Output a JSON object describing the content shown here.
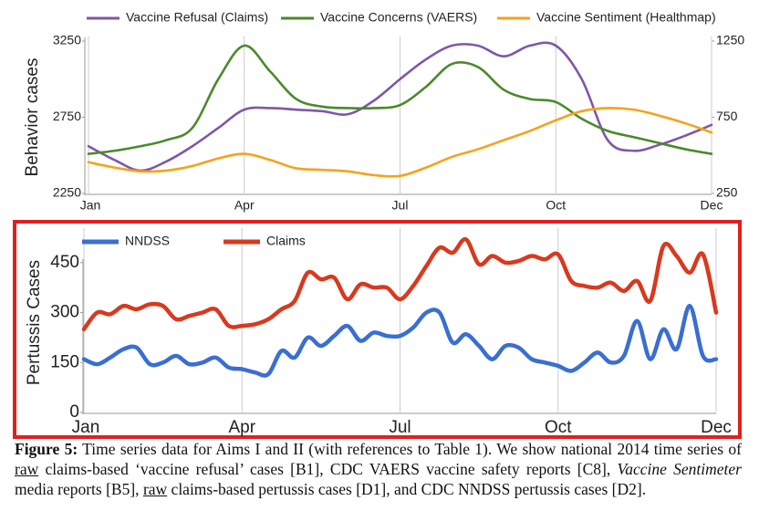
{
  "chart_data": [
    {
      "type": "line",
      "legend": "top",
      "xgrid": true,
      "ylabel": "Behavior cases",
      "categories": [
        "Jan",
        null,
        null,
        null,
        null,
        null,
        "Apr",
        null,
        null,
        null,
        null,
        null,
        "Jul",
        null,
        null,
        null,
        null,
        null,
        "Oct",
        null,
        null,
        null,
        null,
        null,
        "Dec"
      ],
      "ylim": [
        2250,
        3250
      ],
      "yticks": [
        2250,
        2750,
        3250
      ],
      "y2lim": [
        250,
        1250
      ],
      "y2ticks": [
        250,
        750,
        1250
      ],
      "series": [
        {
          "name": "Vaccine Refusal (Claims)",
          "color": "#7e57a9",
          "values": [
            2560,
            2470,
            2400,
            2460,
            2560,
            2680,
            2800,
            2810,
            2800,
            2790,
            2770,
            2860,
            3000,
            3130,
            3220,
            3220,
            3150,
            3220,
            3220,
            3000,
            2600,
            2530,
            2570,
            2630,
            2700
          ]
        },
        {
          "name": "Vaccine Concerns (VAERS)",
          "color": "#4a8a2a",
          "values": [
            2510,
            2530,
            2560,
            2600,
            2680,
            3000,
            3220,
            3050,
            2870,
            2820,
            2810,
            2810,
            2830,
            2950,
            3100,
            3080,
            2930,
            2870,
            2850,
            2740,
            2660,
            2620,
            2580,
            2540,
            2510
          ]
        },
        {
          "name": "Vaccine Sentiment (Healthmap)",
          "color": "#f6a21c",
          "axis": "y2",
          "values": [
            455,
            420,
            395,
            400,
            430,
            480,
            510,
            470,
            415,
            405,
            395,
            370,
            365,
            420,
            490,
            540,
            600,
            660,
            730,
            790,
            810,
            800,
            760,
            710,
            650
          ]
        }
      ]
    },
    {
      "type": "line",
      "legend": "top",
      "xgrid": true,
      "ylabel": "Pertussis Cases",
      "categories": [
        "Jan",
        null,
        null,
        null,
        null,
        null,
        null,
        null,
        null,
        null,
        null,
        null,
        "Apr",
        null,
        null,
        null,
        null,
        null,
        null,
        null,
        null,
        null,
        null,
        null,
        "Jul",
        null,
        null,
        null,
        null,
        null,
        null,
        null,
        null,
        null,
        null,
        null,
        "Oct",
        null,
        null,
        null,
        null,
        null,
        null,
        null,
        null,
        null,
        null,
        null,
        "Dec"
      ],
      "ylim": [
        0,
        540
      ],
      "yticks": [
        0,
        150,
        300,
        450
      ],
      "series": [
        {
          "name": "NNDSS",
          "color": "#3a6fd1",
          "values": [
            160,
            145,
            165,
            190,
            195,
            145,
            150,
            170,
            145,
            150,
            165,
            135,
            130,
            120,
            115,
            185,
            165,
            225,
            200,
            230,
            260,
            215,
            240,
            230,
            230,
            255,
            300,
            300,
            210,
            235,
            200,
            160,
            200,
            195,
            160,
            150,
            140,
            125,
            150,
            180,
            150,
            170,
            275,
            160,
            250,
            190,
            320,
            170,
            160
          ]
        },
        {
          "name": "Claims",
          "color": "#d8391f",
          "values": [
            250,
            300,
            295,
            320,
            310,
            325,
            320,
            280,
            290,
            300,
            310,
            260,
            260,
            265,
            280,
            310,
            335,
            420,
            400,
            405,
            340,
            385,
            375,
            375,
            340,
            380,
            440,
            495,
            480,
            520,
            445,
            470,
            450,
            455,
            470,
            460,
            475,
            395,
            380,
            375,
            390,
            365,
            395,
            335,
            500,
            470,
            420,
            475,
            300
          ]
        }
      ]
    }
  ],
  "caption": {
    "segments": [
      "Figure 5:",
      " Time series data for Aims I and II (with references to Table 1). We show national 2014 time series of ",
      "raw",
      " claims-based ‘vaccine refusal’ cases [B1], CDC VAERS vaccine safety reports [C8], ",
      "Vaccine Sentimeter",
      " media reports [B5], ",
      "raw",
      " claims-based pertussis cases [D1], and CDC NNDSS pertussis cases [D2]."
    ]
  }
}
